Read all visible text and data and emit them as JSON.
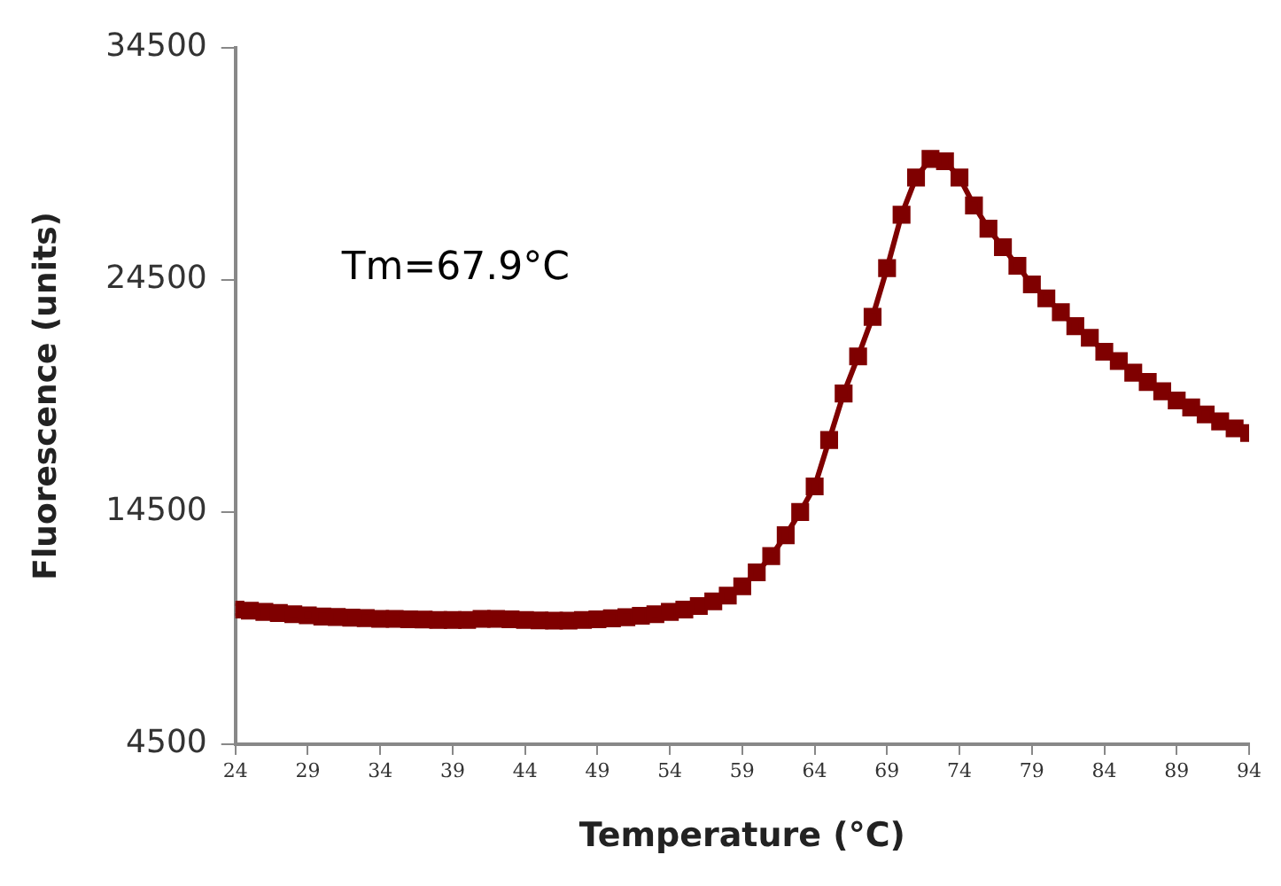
{
  "chart_data": {
    "type": "line",
    "xlabel": "Temperature (°C)",
    "ylabel": "Fluorescence (units)",
    "annotations": [
      "Tm=67.9°C"
    ],
    "x": [
      24,
      25,
      26,
      27,
      28,
      29,
      30,
      31,
      32,
      33,
      34,
      35,
      36,
      37,
      38,
      39,
      40,
      41,
      42,
      43,
      44,
      45,
      46,
      47,
      48,
      49,
      50,
      51,
      52,
      53,
      54,
      55,
      56,
      57,
      58,
      59,
      60,
      61,
      62,
      63,
      64,
      65,
      66,
      67,
      68,
      69,
      70,
      71,
      72,
      73,
      74,
      75,
      76,
      77,
      78,
      79,
      80,
      81,
      82,
      83,
      84,
      85,
      86,
      87,
      88,
      89,
      90,
      91,
      92,
      93,
      94
    ],
    "series": [
      {
        "color": "#7f0000",
        "values": [
          10300,
          10250,
          10200,
          10150,
          10100,
          10050,
          10000,
          9980,
          9950,
          9930,
          9900,
          9900,
          9880,
          9870,
          9850,
          9850,
          9850,
          9900,
          9900,
          9880,
          9850,
          9830,
          9820,
          9820,
          9850,
          9880,
          9920,
          9970,
          10030,
          10100,
          10200,
          10300,
          10450,
          10650,
          10900,
          11300,
          11900,
          12600,
          13500,
          14500,
          15600,
          17600,
          19600,
          21200,
          22900,
          25000,
          27300,
          28900,
          29700,
          29600,
          28900,
          27700,
          26700,
          25900,
          25100,
          24300,
          23700,
          23100,
          22500,
          22000,
          21400,
          21000,
          20500,
          20100,
          19700,
          19300,
          19000,
          18700,
          18400,
          18100,
          17900
        ]
      }
    ],
    "xlim": [
      24,
      94
    ],
    "xticks": [
      24,
      29,
      34,
      39,
      44,
      49,
      54,
      59,
      64,
      69,
      74,
      79,
      84,
      89,
      94
    ],
    "ylim": [
      4500,
      34500
    ],
    "yticks": [
      4500,
      14500,
      24500,
      34500
    ],
    "grid": false,
    "legend": false,
    "marker": "square",
    "line_style": "solid"
  }
}
